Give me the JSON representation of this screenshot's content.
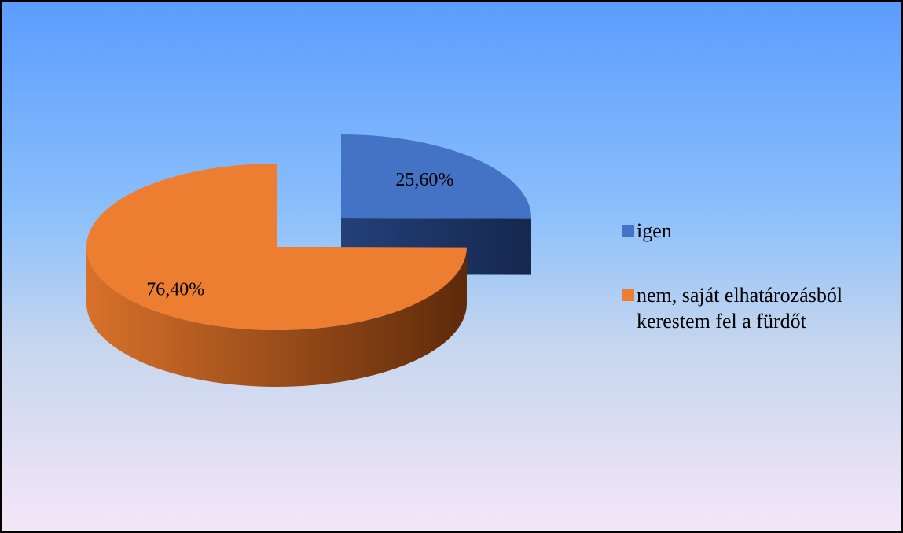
{
  "chart_data": {
    "type": "pie",
    "categories": [
      "igen",
      "nem, saját elhatározásból kerestem fel a fürdőt"
    ],
    "values": [
      25.6,
      76.4
    ],
    "value_labels": [
      "25,60%",
      "76,40%"
    ],
    "colors": [
      "#4472c4",
      "#ed7d31"
    ],
    "legend": "right"
  }
}
